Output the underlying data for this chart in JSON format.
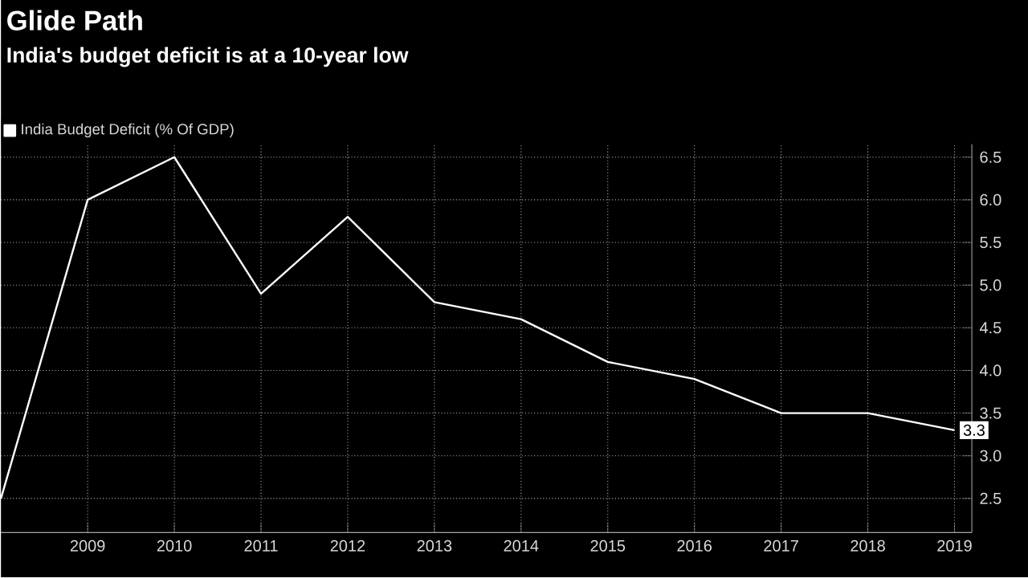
{
  "chart_data": {
    "type": "line",
    "title": "Glide Path",
    "subtitle": "India's budget deficit is at a 10-year low",
    "x": [
      2008,
      2009,
      2010,
      2011,
      2012,
      2013,
      2014,
      2015,
      2016,
      2017,
      2018,
      2019
    ],
    "series": [
      {
        "name": "India Budget Deficit (% Of GDP)",
        "color": "#ffffff",
        "values": [
          2.5,
          6.0,
          6.5,
          4.9,
          5.8,
          4.8,
          4.6,
          4.1,
          3.9,
          3.5,
          3.5,
          3.3
        ],
        "value_labels": [
          null,
          null,
          null,
          null,
          null,
          null,
          null,
          null,
          null,
          null,
          null,
          "3.3"
        ]
      }
    ],
    "xlim": [
      2008,
      2019.2
    ],
    "xticks": [
      2009,
      2010,
      2011,
      2012,
      2013,
      2014,
      2015,
      2016,
      2017,
      2018,
      2019
    ],
    "ylim": [
      2.1,
      6.65
    ],
    "yticks": [
      {
        "value": 2.5,
        "label": "2.5"
      },
      {
        "value": 3,
        "label": "3.0"
      },
      {
        "value": 3.5,
        "label": "3.5"
      },
      {
        "value": 4,
        "label": "4.0"
      },
      {
        "value": 4.5,
        "label": "4.5"
      },
      {
        "value": 5,
        "label": "5.0"
      },
      {
        "value": 5.5,
        "label": "5.5"
      },
      {
        "value": 6,
        "label": "6.0"
      },
      {
        "value": 6.5,
        "label": "6.5"
      }
    ],
    "grid": true,
    "legend": "top left",
    "marker": "none",
    "line_style": "solid"
  }
}
